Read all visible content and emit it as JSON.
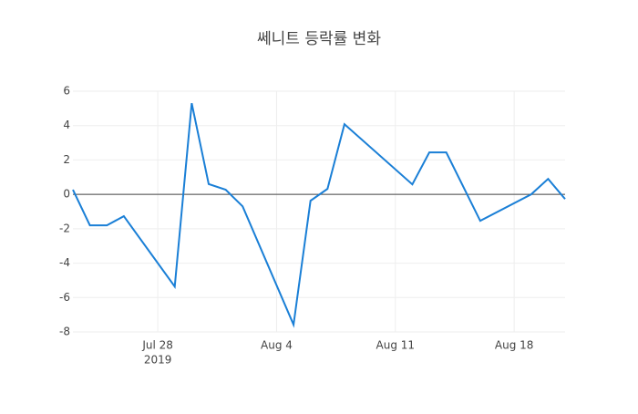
{
  "chart_data": {
    "type": "line",
    "title": "쎄니트 등락률 변화",
    "x": [
      "2019-07-23",
      "2019-07-24",
      "2019-07-25",
      "2019-07-26",
      "2019-07-29",
      "2019-07-30",
      "2019-07-31",
      "2019-08-01",
      "2019-08-02",
      "2019-08-05",
      "2019-08-06",
      "2019-08-07",
      "2019-08-08",
      "2019-08-12",
      "2019-08-13",
      "2019-08-14",
      "2019-08-16",
      "2019-08-19",
      "2019-08-20",
      "2019-08-21"
    ],
    "series": [
      {
        "color": "#1a7fd6",
        "values": [
          0.27,
          -1.8,
          -1.8,
          -1.27,
          -5.36,
          5.3,
          0.6,
          0.27,
          -0.7,
          -7.58,
          -0.37,
          0.32,
          4.08,
          0.58,
          2.44,
          2.44,
          -1.54,
          0,
          0.9,
          -0.27
        ]
      }
    ],
    "xlim": [
      "2019-07-23",
      "2019-08-21"
    ],
    "xticks": [
      {
        "value": "2019-07-28",
        "label": "Jul 28"
      },
      {
        "value": "2019-08-04",
        "label": "Aug 4"
      },
      {
        "value": "2019-08-11",
        "label": "Aug 11"
      },
      {
        "value": "2019-08-18",
        "label": "Aug 18"
      }
    ],
    "xtick_year": "2019",
    "ylim": [
      -8,
      6
    ],
    "yticks": [
      -8,
      -6,
      -4,
      -2,
      0,
      2,
      4,
      6
    ],
    "grid": true,
    "zeroline": true
  }
}
